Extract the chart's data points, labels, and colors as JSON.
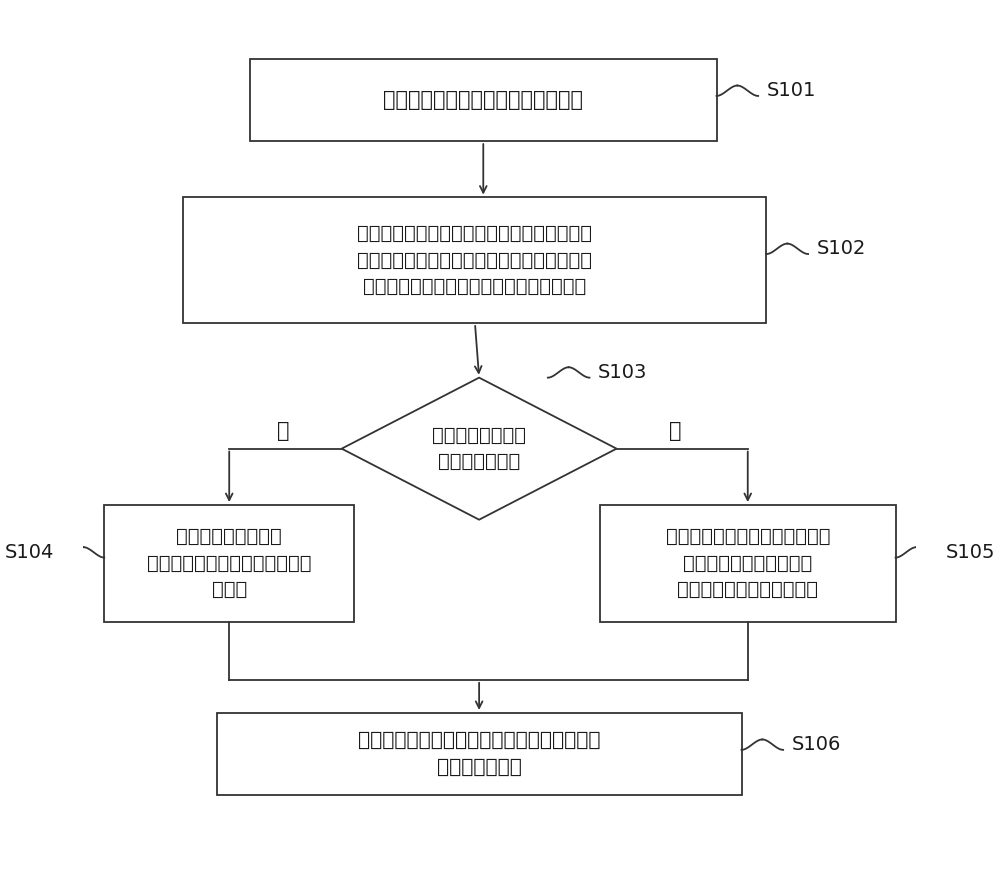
{
  "background_color": "#ffffff",
  "box_border_color": "#333333",
  "box_fill_color": "#ffffff",
  "arrow_color": "#333333",
  "text_color": "#1a1a1a",
  "s101_text": "用户终端向业务服务器发送服务请求",
  "s102_text": "业务服务器基于服务请求获取目标用户代码和\n待配置参数，并基于目标用户代码和待配置参\n数向配置中心服务器请求确定目标专有参数",
  "s103_text": "配置中心服务器获\n取目标专有参数",
  "s104_text": "配置中心服务器将目\n标专有参数的参数值发送至业务\n服务器",
  "s105_text": "配置中心服务器将待配置参数名\n称相对应的目标全局参数\n的参数值发送至业务服务器",
  "s106_text": "业务服务器基于配置中心服务器输出的参数值\n配置待配置参数",
  "yes_label": "是",
  "no_label": "否",
  "label_s101": "S101",
  "label_s102": "S102",
  "label_s103": "S103",
  "label_s104": "S104",
  "label_s105": "S105",
  "label_s106": "S106"
}
